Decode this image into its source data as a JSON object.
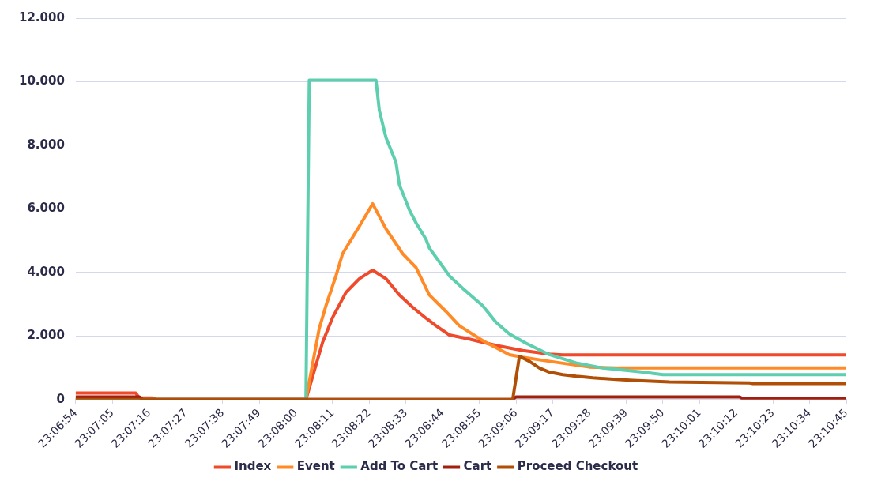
{
  "chart_data": {
    "type": "line",
    "xlim": [
      23.115,
      23.179167
    ],
    "ylim": [
      0,
      12000
    ],
    "xticks": [
      {
        "value": 23.115,
        "label": "23:06:54"
      },
      {
        "value": 23.118056,
        "label": "23:07:05"
      },
      {
        "value": 23.121111,
        "label": "23:07:16"
      },
      {
        "value": 23.124167,
        "label": "23:07:27"
      },
      {
        "value": 23.127222,
        "label": "23:07:38"
      },
      {
        "value": 23.130278,
        "label": "23:07:49"
      },
      {
        "value": 23.133333,
        "label": "23:08:00"
      },
      {
        "value": 23.136389,
        "label": "23:08:11"
      },
      {
        "value": 23.139444,
        "label": "23:08:22"
      },
      {
        "value": 23.1425,
        "label": "23:08:33"
      },
      {
        "value": 23.145556,
        "label": "23:08:44"
      },
      {
        "value": 23.148611,
        "label": "23:08:55"
      },
      {
        "value": 23.151667,
        "label": "23:09:06"
      },
      {
        "value": 23.154722,
        "label": "23:09:17"
      },
      {
        "value": 23.157778,
        "label": "23:09:28"
      },
      {
        "value": 23.160833,
        "label": "23:09:39"
      },
      {
        "value": 23.163889,
        "label": "23:09:50"
      },
      {
        "value": 23.166944,
        "label": "23:10:01"
      },
      {
        "value": 23.17,
        "label": "23:10:12"
      },
      {
        "value": 23.173056,
        "label": "23:10:23"
      },
      {
        "value": 23.176111,
        "label": "23:10:34"
      },
      {
        "value": 23.179167,
        "label": "23:10:45"
      }
    ],
    "yticks": [
      {
        "value": 0,
        "label": "0"
      },
      {
        "value": 2000,
        "label": "2.000"
      },
      {
        "value": 4000,
        "label": "4.000"
      },
      {
        "value": 6000,
        "label": "6.000"
      },
      {
        "value": 8000,
        "label": "8.000"
      },
      {
        "value": 10000,
        "label": "10.000"
      },
      {
        "value": 12000,
        "label": "12.000"
      }
    ],
    "grid": "y",
    "legend": "bottom",
    "marker": "none",
    "line_style": "solid",
    "series": [
      {
        "name": "Index",
        "color": "#ef4a2b",
        "x": [
          23.115,
          23.12,
          23.120278,
          23.121389,
          23.121667,
          23.134167,
          23.135556,
          23.136389,
          23.1375,
          23.138611,
          23.139722,
          23.140833,
          23.141944,
          23.143056,
          23.144167,
          23.145,
          23.146111,
          23.147778,
          23.15,
          23.152222,
          23.154444,
          23.155556,
          23.179167
        ],
        "values": [
          200,
          200,
          50,
          50,
          0,
          0,
          1800,
          2580,
          3370,
          3800,
          4070,
          3800,
          3290,
          2900,
          2560,
          2320,
          2030,
          1900,
          1700,
          1540,
          1430,
          1400,
          1400
        ]
      },
      {
        "name": "Event",
        "color": "#ff8a26",
        "x": [
          23.115,
          23.134167,
          23.135278,
          23.135833,
          23.136667,
          23.137222,
          23.138611,
          23.139722,
          23.140833,
          23.142222,
          23.143333,
          23.144444,
          23.145833,
          23.146944,
          23.148889,
          23.151111,
          23.152222,
          23.154444,
          23.157778,
          23.16,
          23.179167
        ],
        "values": [
          0,
          0,
          2240,
          2950,
          3890,
          4590,
          5450,
          6160,
          5370,
          4590,
          4150,
          3290,
          2770,
          2320,
          1850,
          1410,
          1330,
          1200,
          1020,
          990,
          990
        ]
      },
      {
        "name": "Add To Cart",
        "color": "#5ecfae",
        "x": [
          23.115,
          23.134167,
          23.134444,
          23.14,
          23.140278,
          23.140833,
          23.141667,
          23.141944,
          23.142778,
          23.143333,
          23.144167,
          23.144444,
          23.145278,
          23.146111,
          23.147222,
          23.148889,
          23.15,
          23.151111,
          23.1525,
          23.154444,
          23.156667,
          23.158889,
          23.162222,
          23.163889,
          23.179167
        ],
        "values": [
          0,
          0,
          10050,
          10050,
          9100,
          8240,
          7460,
          6760,
          5970,
          5560,
          5040,
          4770,
          4330,
          3890,
          3500,
          2950,
          2430,
          2060,
          1770,
          1410,
          1150,
          990,
          860,
          780,
          780
        ]
      },
      {
        "name": "Cart",
        "color": "#a01f0e",
        "x": [
          23.115,
          23.120278,
          23.120556,
          23.151389,
          23.151667,
          23.170278,
          23.170556,
          23.179167
        ],
        "values": [
          80,
          80,
          0,
          0,
          80,
          80,
          20,
          20
        ]
      },
      {
        "name": "Proceed Checkout",
        "color": "#b04f05",
        "x": [
          23.115,
          23.151389,
          23.151944,
          23.152778,
          23.153611,
          23.154444,
          23.155556,
          23.156667,
          23.158056,
          23.16,
          23.161389,
          23.164444,
          23.171111,
          23.171389,
          23.179167
        ],
        "values": [
          0,
          0,
          1360,
          1200,
          990,
          860,
          780,
          730,
          680,
          630,
          600,
          550,
          520,
          500,
          500
        ]
      }
    ]
  }
}
